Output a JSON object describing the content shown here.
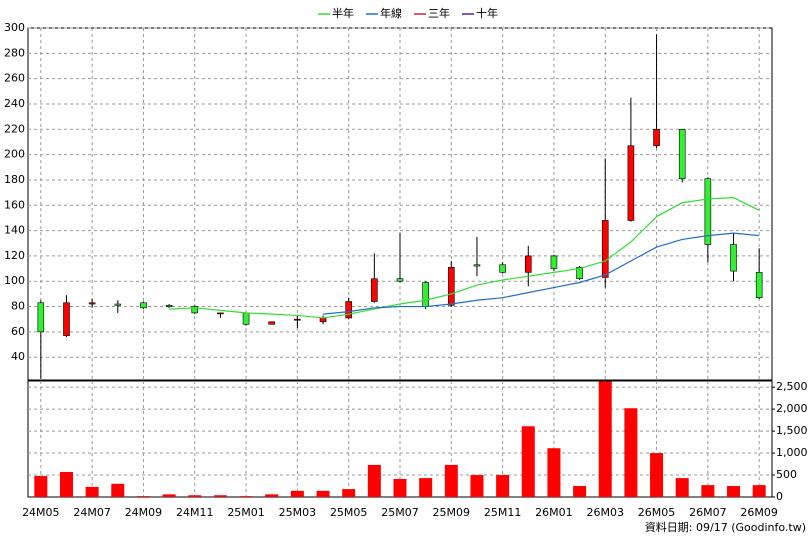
{
  "chart_data": [
    {
      "type": "candlestick",
      "up_color": "#ff0000",
      "down_color": "#33ee33",
      "open": [
        83,
        57,
        82,
        82,
        83,
        81,
        80,
        75,
        75,
        66,
        70,
        68,
        71,
        84,
        102,
        99,
        81,
        113,
        113,
        107,
        120,
        111,
        103,
        148,
        207,
        220,
        181,
        129,
        107
      ],
      "high": [
        85,
        89,
        86,
        85,
        84,
        82,
        81,
        75,
        75,
        68,
        73,
        73,
        87,
        122,
        138,
        100,
        116,
        135,
        115,
        128,
        121,
        112,
        197,
        245,
        295,
        220,
        182,
        138,
        126
      ],
      "low": [
        23,
        56,
        79,
        75,
        78,
        79,
        74,
        71,
        65,
        66,
        63,
        66,
        70,
        83,
        99,
        78,
        80,
        104,
        106,
        96,
        108,
        101,
        95,
        147,
        205,
        178,
        115,
        100,
        86
      ],
      "close": [
        60,
        83,
        83,
        81,
        79,
        80,
        75,
        75,
        66,
        68,
        70,
        71,
        84,
        102,
        100,
        80,
        111,
        112,
        107,
        120,
        110,
        102,
        148,
        207,
        220,
        181,
        129,
        108,
        87
      ],
      "series": [
        {
          "name": "半年",
          "color": "#33dd33",
          "values": [
            null,
            null,
            null,
            null,
            null,
            78,
            79,
            77,
            75,
            74,
            73,
            71,
            74,
            78,
            82,
            85,
            90,
            97,
            101,
            104,
            107,
            110,
            116,
            131,
            151,
            162,
            165,
            166,
            156
          ]
        },
        {
          "name": "年線",
          "color": "#1f6fc8",
          "values": [
            null,
            null,
            null,
            null,
            null,
            null,
            null,
            null,
            null,
            null,
            null,
            74,
            76,
            79,
            80,
            80,
            82,
            85,
            87,
            91,
            95,
            99,
            105,
            116,
            127,
            133,
            136,
            138,
            136
          ]
        },
        {
          "name": "三年",
          "color": "#cc2244",
          "values": [
            null,
            null,
            null,
            null,
            null,
            null,
            null,
            null,
            null,
            null,
            null,
            null,
            null,
            null,
            null,
            null,
            null,
            null,
            null,
            null,
            null,
            null,
            null,
            null,
            null,
            null,
            null,
            null,
            null
          ]
        },
        {
          "name": "十年",
          "color": "#5522aa",
          "values": [
            null,
            null,
            null,
            null,
            null,
            null,
            null,
            null,
            null,
            null,
            null,
            null,
            null,
            null,
            null,
            null,
            null,
            null,
            null,
            null,
            null,
            null,
            null,
            null,
            null,
            null,
            null,
            null,
            null
          ]
        }
      ],
      "ylim": [
        22,
        300
      ],
      "yticks": [
        40,
        60,
        80,
        100,
        120,
        140,
        160,
        180,
        200,
        220,
        240,
        260,
        280,
        300
      ],
      "grid": true
    },
    {
      "type": "bar",
      "color": "#ff0000",
      "categories": [
        "24M05",
        null,
        "24M07",
        null,
        "24M09",
        null,
        "24M11",
        null,
        "25M01",
        null,
        "25M03",
        null,
        "25M05",
        null,
        "25M07",
        null,
        "25M09",
        null,
        "25M11",
        null,
        "26M01",
        null,
        "26M03",
        null,
        "26M05",
        null,
        "26M07",
        null,
        "26M09"
      ],
      "values": [
        477,
        570,
        230,
        300,
        20,
        60,
        40,
        40,
        20,
        60,
        140,
        140,
        180,
        730,
        410,
        430,
        730,
        500,
        500,
        1610,
        1110,
        250,
        2630,
        2020,
        1000,
        430,
        270,
        250,
        270
      ],
      "ylim": [
        0,
        2640
      ],
      "yticks": [
        0,
        500,
        {
          "value": 1000,
          "label": "1,000"
        },
        {
          "value": 1500,
          "label": "1,500"
        },
        {
          "value": 2000,
          "label": "2,000"
        },
        {
          "value": 2500,
          "label": "2,500"
        }
      ],
      "grid": true
    }
  ],
  "footer": "資料日期: 09/17 (Goodinfo.tw)"
}
